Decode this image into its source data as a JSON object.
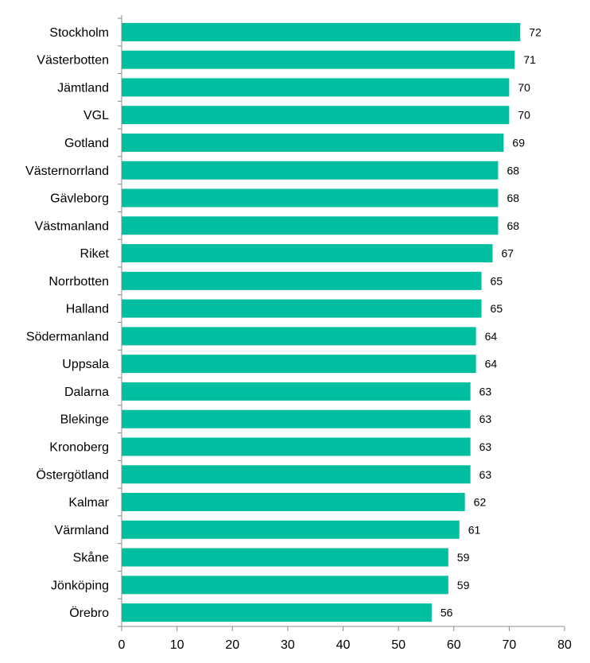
{
  "chart_data": {
    "type": "bar",
    "orientation": "horizontal",
    "title": "",
    "xlabel": "",
    "ylabel": "",
    "categories": [
      "Stockholm",
      "Västerbotten",
      "Jämtland",
      "VGL",
      "Gotland",
      "Västernorrland",
      "Gävleborg",
      "Västmanland",
      "Riket",
      "Norrbotten",
      "Halland",
      "Södermanland",
      "Uppsala",
      "Dalarna",
      "Blekinge",
      "Kronoberg",
      "Östergötland",
      "Kalmar",
      "Värmland",
      "Skåne",
      "Jönköping",
      "Örebro"
    ],
    "values": [
      72,
      71,
      70,
      70,
      69,
      68,
      68,
      68,
      67,
      65,
      65,
      64,
      64,
      63,
      63,
      63,
      63,
      62,
      61,
      59,
      59,
      56
    ],
    "xlim": [
      0,
      80
    ],
    "xticks": [
      0,
      10,
      20,
      30,
      40,
      50,
      60,
      70,
      80
    ],
    "grid": false,
    "legend": "none",
    "bar_color": "#00BFA0",
    "axis_color": "#8C8C8C"
  }
}
